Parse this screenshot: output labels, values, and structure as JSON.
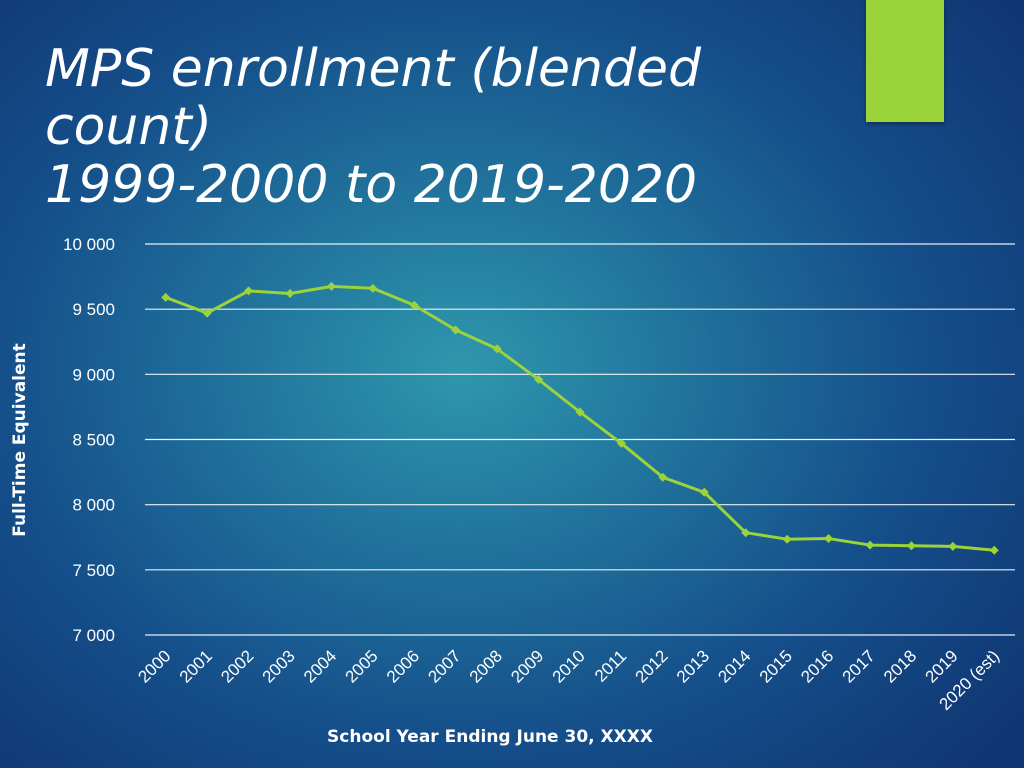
{
  "slide": {
    "title_lines": [
      "MPS enrollment (blended",
      "count)",
      "1999-2000 to 2019-2020"
    ],
    "accent_color": "#9bd33a"
  },
  "chart_data": {
    "type": "line",
    "title": "",
    "xlabel": "School Year Ending June 30, XXXX",
    "ylabel": "Full-Time Equivalent",
    "categories": [
      "2000",
      "2001",
      "2002",
      "2003",
      "2004",
      "2005",
      "2006",
      "2007",
      "2008",
      "2009",
      "2010",
      "2011",
      "2012",
      "2013",
      "2014",
      "2015",
      "2016",
      "2017",
      "2018",
      "2019",
      "2020 (est)"
    ],
    "series": [
      {
        "color": "#9bd33a",
        "values": [
          9590,
          9470,
          9640,
          9620,
          9675,
          9660,
          9530,
          9340,
          9195,
          8960,
          8710,
          8470,
          8210,
          8095,
          7785,
          7735,
          7740,
          7690,
          7685,
          7680,
          7650
        ]
      }
    ],
    "ylim": [
      7000,
      10000
    ],
    "yticks": [
      7000,
      7500,
      8000,
      8500,
      9000,
      9500,
      10000
    ],
    "ytick_labels": [
      "7 000",
      "7 500",
      "8 000",
      "8 500",
      "9 000",
      "9 500",
      "10 000"
    ],
    "grid": true,
    "legend": "none"
  }
}
